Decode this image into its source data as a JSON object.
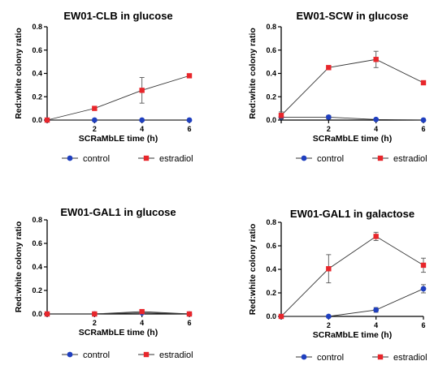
{
  "chart_data": [
    {
      "type": "line",
      "title": "EW01-CLB in glucose",
      "xlabel": "SCRaMbLE time (h)",
      "ylabel": "Red:white colony ratio",
      "x": [
        0,
        2,
        4,
        6
      ],
      "x_ticks": [
        "2",
        "4",
        "6"
      ],
      "xlim": [
        0,
        6
      ],
      "ylim": [
        0,
        0.8
      ],
      "y_ticks": [
        "0.0",
        "0.2",
        "0.4",
        "0.6",
        "0.8"
      ],
      "grid": false,
      "legend": "bottom",
      "series": [
        {
          "name": "control",
          "color": "#1f3fbf",
          "marker": "circle",
          "values": [
            0,
            0,
            0,
            0
          ],
          "err": [
            0,
            0,
            0,
            0
          ]
        },
        {
          "name": "estradiol",
          "color": "#e8262b",
          "marker": "square",
          "values": [
            0,
            0.1,
            0.255,
            0.38
          ],
          "err": [
            0,
            0,
            0.11,
            0
          ]
        }
      ]
    },
    {
      "type": "line",
      "title": "EW01-SCW in glucose",
      "xlabel": "SCRaMbLE time (h)",
      "ylabel": "Red:white colony ratio",
      "x": [
        0,
        2,
        4,
        6
      ],
      "x_ticks": [
        "2",
        "4",
        "6"
      ],
      "xlim": [
        0,
        6
      ],
      "ylim": [
        0,
        0.8
      ],
      "y_ticks": [
        "0.0",
        "0.2",
        "0.4",
        "0.6",
        "0.8"
      ],
      "grid": false,
      "legend": "bottom",
      "series": [
        {
          "name": "control",
          "color": "#1f3fbf",
          "marker": "circle",
          "values": [
            0.025,
            0.025,
            0.005,
            0
          ],
          "err": [
            0,
            0.015,
            0,
            0
          ]
        },
        {
          "name": "estradiol",
          "color": "#e8262b",
          "marker": "square",
          "values": [
            0.04,
            0.45,
            0.52,
            0.32
          ],
          "err": [
            0.03,
            0,
            0.07,
            0
          ]
        }
      ]
    },
    {
      "type": "line",
      "title": "EW01-GAL1 in glucose",
      "xlabel": "SCRaMbLE time (h)",
      "ylabel": "Red:white colony ratio",
      "x": [
        0,
        2,
        4,
        6
      ],
      "x_ticks": [
        "2",
        "4",
        "6"
      ],
      "xlim": [
        0,
        6
      ],
      "ylim": [
        0,
        0.8
      ],
      "y_ticks": [
        "0.0",
        "0.2",
        "0.4",
        "0.6",
        "0.8"
      ],
      "grid": false,
      "legend": "bottom",
      "series": [
        {
          "name": "control",
          "color": "#1f3fbf",
          "marker": "circle",
          "values": [
            0,
            0,
            0.01,
            0
          ],
          "err": [
            0,
            0,
            0.01,
            0
          ]
        },
        {
          "name": "estradiol",
          "color": "#e8262b",
          "marker": "square",
          "values": [
            0,
            0,
            0.02,
            0
          ],
          "err": [
            0,
            0,
            0,
            0
          ]
        }
      ]
    },
    {
      "type": "line",
      "title": "EW01-GAL1 in galactose",
      "xlabel": "SCRaMbLE time (h)",
      "ylabel": "Red:white colony ratio",
      "x": [
        0,
        2,
        4,
        6
      ],
      "x_ticks": [
        "2",
        "4",
        "6"
      ],
      "xlim": [
        0,
        6
      ],
      "ylim": [
        0,
        0.8
      ],
      "y_ticks": [
        "0.0",
        "0.2",
        "0.4",
        "0.6",
        "0.8"
      ],
      "grid": false,
      "legend": "bottom",
      "series": [
        {
          "name": "control",
          "color": "#1f3fbf",
          "marker": "circle",
          "values": [
            0,
            0,
            0.055,
            0.235
          ],
          "err": [
            0,
            0,
            0.02,
            0.035
          ]
        },
        {
          "name": "estradiol",
          "color": "#e8262b",
          "marker": "square",
          "values": [
            0,
            0.405,
            0.68,
            0.435
          ],
          "err": [
            0,
            0.12,
            0.035,
            0.06
          ]
        }
      ]
    }
  ]
}
